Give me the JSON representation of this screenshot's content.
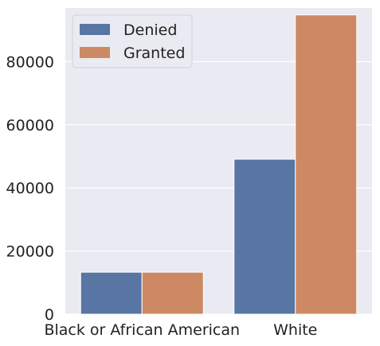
{
  "chart_data": {
    "type": "bar",
    "categories": [
      "Black or African American",
      "White"
    ],
    "series": [
      {
        "name": "Denied",
        "values": [
          13300,
          49100
        ],
        "color": "#5875a4"
      },
      {
        "name": "Granted",
        "values": [
          13300,
          94800
        ],
        "color": "#cc8963"
      }
    ],
    "ylim": [
      0,
      97000
    ],
    "yticks": [
      0,
      20000,
      40000,
      60000,
      80000
    ],
    "ytick_labels": [
      "0",
      "20000",
      "40000",
      "60000",
      "80000"
    ],
    "grid": true,
    "legend_position": "top-left",
    "background": "#eaeaf2"
  }
}
